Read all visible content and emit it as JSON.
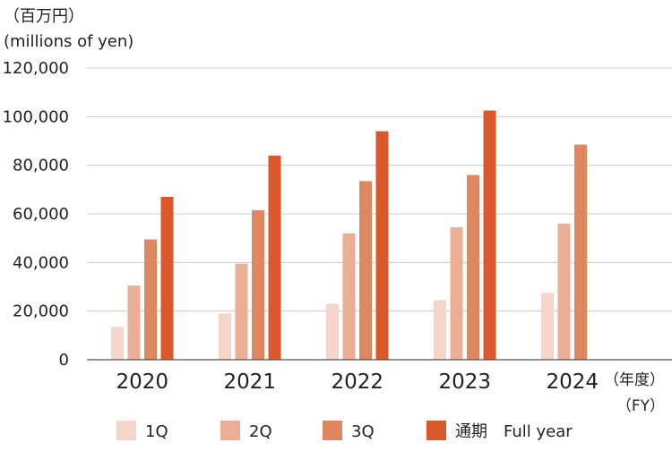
{
  "chart_data": {
    "type": "bar",
    "unit_label_jp": "（百万円）",
    "unit_label_en": "(millions of yen)",
    "xlabel_jp": "（年度）",
    "xlabel_en": "（FY）",
    "categories": [
      "2020",
      "2021",
      "2022",
      "2023",
      "2024"
    ],
    "ylim": [
      0,
      120000
    ],
    "yticks": [
      0,
      20000,
      40000,
      60000,
      80000,
      100000,
      120000
    ],
    "ytick_labels": [
      "0",
      "20,000",
      "40,000",
      "60,000",
      "80,000",
      "100,000",
      "120,000"
    ],
    "grid": true,
    "legend_position": "bottom",
    "series": [
      {
        "name": "1Q",
        "color": "#f5d5c8",
        "values": [
          13500,
          19000,
          23000,
          24500,
          27500
        ]
      },
      {
        "name": "2Q",
        "color": "#ebae92",
        "values": [
          30500,
          39500,
          52000,
          54500,
          56000
        ]
      },
      {
        "name": "3Q",
        "color": "#e08762",
        "values": [
          49500,
          61500,
          73500,
          76000,
          88500
        ]
      },
      {
        "name": "通期　Full year",
        "color": "#d9592c",
        "values": [
          67000,
          84000,
          94000,
          102500,
          null
        ]
      }
    ]
  }
}
